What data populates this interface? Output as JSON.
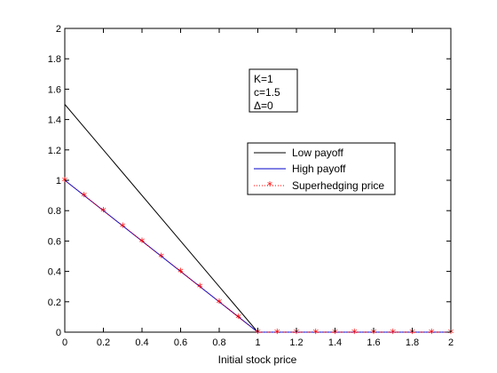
{
  "chart_data": {
    "type": "line",
    "title": "",
    "xlabel": "Initial stock price",
    "ylabel": "",
    "xlim": [
      0,
      2
    ],
    "ylim": [
      0,
      2
    ],
    "xticks": [
      "0",
      "0.2",
      "0.4",
      "0.6",
      "0.8",
      "1",
      "1.2",
      "1.4",
      "1.6",
      "1.8",
      "2"
    ],
    "yticks": [
      "0",
      "0.2",
      "0.4",
      "0.6",
      "0.8",
      "1",
      "1.2",
      "1.4",
      "1.6",
      "1.8",
      "2"
    ],
    "grid": false,
    "legend_position": "right-middle",
    "annotation_lines": [
      "K=1",
      "c=1.5",
      "Δ=0"
    ],
    "series": [
      {
        "name": "Low payoff",
        "style": "solid",
        "color": "#000000",
        "x": [
          0,
          1,
          2
        ],
        "y": [
          1.5,
          0,
          0
        ]
      },
      {
        "name": "High payoff",
        "style": "solid",
        "color": "#0000c8",
        "x": [
          0,
          1,
          2
        ],
        "y": [
          1,
          0,
          0
        ]
      },
      {
        "name": "Superhedging price",
        "style": "dotted-star",
        "color": "#ff0000",
        "x": [
          0,
          0.1,
          0.2,
          0.3,
          0.4,
          0.5,
          0.6,
          0.7,
          0.8,
          0.9,
          1.0,
          1.1,
          1.2,
          1.3,
          1.4,
          1.5,
          1.6,
          1.7,
          1.8,
          1.9,
          2.0
        ],
        "y": [
          1,
          0.9,
          0.8,
          0.7,
          0.6,
          0.5,
          0.4,
          0.3,
          0.2,
          0.1,
          0,
          0,
          0,
          0,
          0,
          0,
          0,
          0,
          0,
          0,
          0
        ]
      }
    ]
  }
}
